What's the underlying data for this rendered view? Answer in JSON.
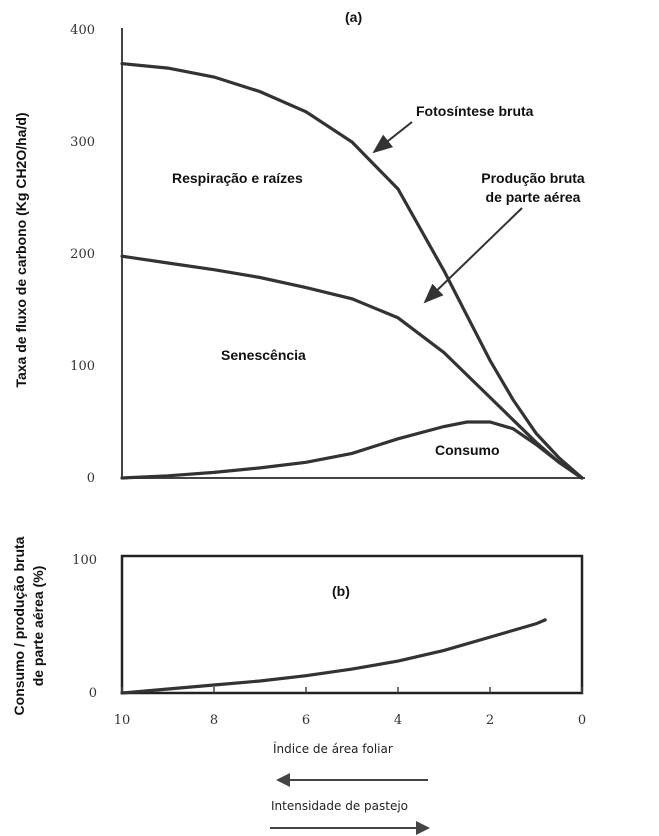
{
  "chart_data": [
    {
      "type": "line",
      "panel_label": "(a)",
      "ylabel": "Taxa de fluxo de carbono (Kg CH2O/ha/d)",
      "xlim": [
        10,
        0
      ],
      "ylim": [
        0,
        400
      ],
      "yticks": [
        "0",
        "100",
        "200",
        "300",
        "400"
      ],
      "series": [
        {
          "name": "Fotosíntese bruta",
          "x": [
            10,
            9,
            8,
            7,
            6,
            5,
            4,
            3,
            2.5,
            2,
            1.5,
            1,
            0.5,
            0
          ],
          "y": [
            370,
            366,
            358,
            345,
            327,
            300,
            258,
            185,
            145,
            105,
            70,
            40,
            18,
            0
          ]
        },
        {
          "name": "Produção bruta de parte aérea",
          "x": [
            10,
            9,
            8,
            7,
            6,
            5,
            4,
            3,
            2.5,
            2,
            1.5,
            1,
            0.5,
            0
          ],
          "y": [
            198,
            192,
            186,
            179,
            170,
            160,
            143,
            112,
            92,
            72,
            52,
            32,
            14,
            0
          ]
        },
        {
          "name": "Consumo",
          "x": [
            10,
            9,
            8,
            7,
            6,
            5,
            4,
            3,
            2.5,
            2,
            1.5,
            1,
            0.5,
            0
          ],
          "y": [
            0,
            2,
            5,
            9,
            14,
            22,
            35,
            46,
            50,
            50,
            44,
            30,
            14,
            0
          ]
        }
      ],
      "annotations": [
        "Fotosíntese bruta",
        "Respiração e raízes",
        "Produção bruta",
        "de parte aérea",
        "Senescência",
        "Consumo"
      ]
    },
    {
      "type": "line",
      "panel_label": "(b)",
      "ylabel_line1": "Consumo / produção bruta",
      "ylabel_line2": "de parte aérea (%)",
      "xlim": [
        10,
        0
      ],
      "ylim": [
        0,
        100
      ],
      "yticks": [
        "0",
        "100"
      ],
      "xticks": [
        "10",
        "8",
        "6",
        "4",
        "2",
        "0"
      ],
      "series": [
        {
          "x": [
            10,
            9,
            8,
            7,
            6,
            5,
            4,
            3,
            2,
            1,
            0.8
          ],
          "y": [
            0,
            3,
            6,
            9,
            13,
            18,
            24,
            32,
            42,
            52,
            55
          ]
        }
      ]
    }
  ],
  "footer": {
    "xlabel": "Índice de área foliar",
    "arrow_label": "Intensidade de pastejo"
  }
}
